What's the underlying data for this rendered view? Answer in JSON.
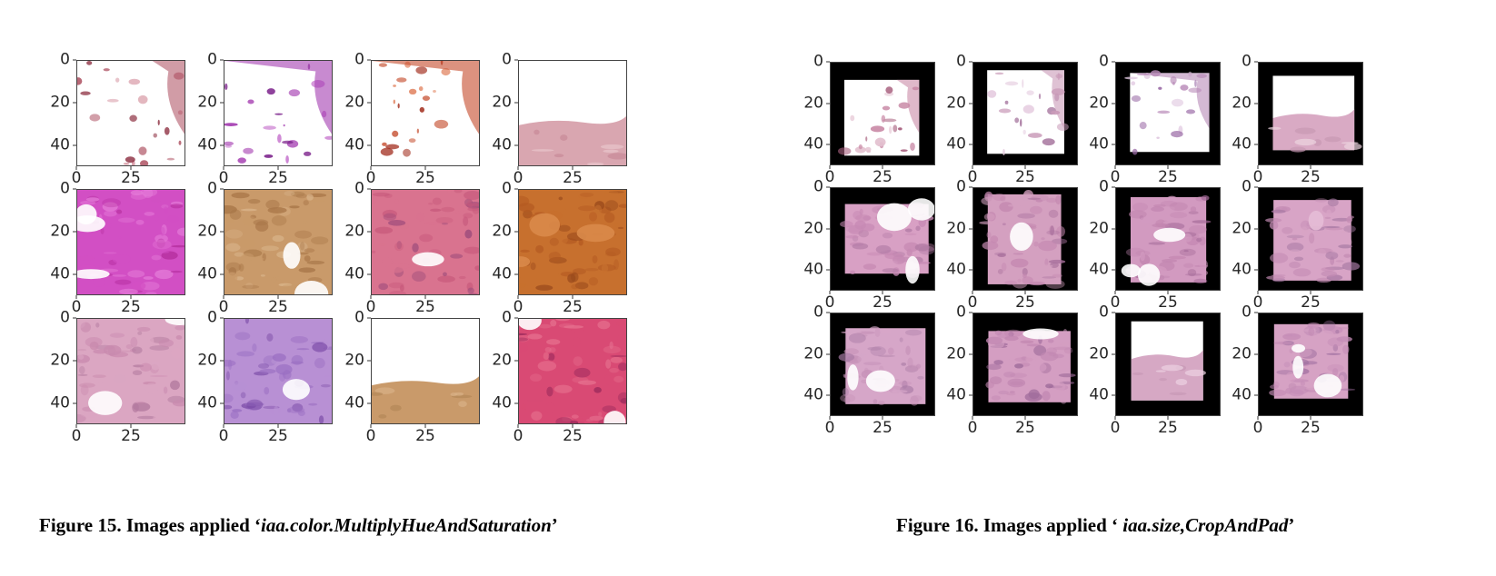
{
  "figures": [
    {
      "id": "figure-15",
      "caption": {
        "prefix": "Figure 15. Images applied ‘",
        "method": "iaa.color.MultiplyHueAndSaturation",
        "suffix": "’"
      },
      "panels_ytick_labels": [
        "0",
        "20",
        "40"
      ],
      "panels_xtick_labels": [
        "0",
        "25"
      ],
      "panels": [
        {
          "style": "sparse-pink",
          "colors": [
            "#ffffff",
            "#b25a6a",
            "#d89aa6",
            "#8a2a3c"
          ]
        },
        {
          "style": "sparse-purple",
          "colors": [
            "#ffffff",
            "#a43cb0",
            "#c97ad0",
            "#7a1f8a"
          ]
        },
        {
          "style": "sparse-red",
          "colors": [
            "#ffffff",
            "#c44a2a",
            "#e38b6a",
            "#a02818"
          ]
        },
        {
          "style": "band-pink",
          "colors": [
            "#ffffff",
            "#d9a6b0",
            "#c88a98",
            "#e8c6cc"
          ]
        },
        {
          "style": "tissue-magenta",
          "colors": [
            "#d24fc4",
            "#e47ad8",
            "#ffffff",
            "#b52e9e"
          ]
        },
        {
          "style": "tissue-tan",
          "colors": [
            "#c99a6a",
            "#a87648",
            "#ffffff",
            "#d9b48a"
          ]
        },
        {
          "style": "tissue-pink",
          "colors": [
            "#d9738f",
            "#c85a7c",
            "#ffffff",
            "#9a4a7a"
          ]
        },
        {
          "style": "tissue-orange",
          "colors": [
            "#c7702e",
            "#b45a22",
            "#d9894a",
            "#9a4a1c"
          ]
        },
        {
          "style": "tissue-lightpink",
          "colors": [
            "#dba6c2",
            "#c98aae",
            "#ffffff",
            "#b27a9e"
          ]
        },
        {
          "style": "tissue-violet",
          "colors": [
            "#b890d4",
            "#9a6ec2",
            "#ffffff",
            "#7a4aa6"
          ]
        },
        {
          "style": "band-tan",
          "colors": [
            "#ffffff",
            "#c99a6a",
            "#b48858",
            "#d8b088"
          ]
        },
        {
          "style": "tissue-rose",
          "colors": [
            "#d94a74",
            "#e6708e",
            "#ffffff",
            "#9a2a5c"
          ]
        }
      ]
    },
    {
      "id": "figure-16",
      "caption": {
        "prefix": "Figure 16. Images applied ‘ ",
        "method": "iaa.size,CropAndPad",
        "suffix": "’"
      },
      "panels_ytick_labels": [
        "0",
        "20",
        "40"
      ],
      "panels_xtick_labels": [
        "0",
        "25"
      ],
      "panels": [
        {
          "style": "pad-sparse",
          "colors": [
            "#ffffff",
            "#c98aa6",
            "#a8607e",
            "#e3c0cf"
          ]
        },
        {
          "style": "pad-sparse",
          "colors": [
            "#ffffff",
            "#c99ab8",
            "#a878a0",
            "#e6cde0"
          ]
        },
        {
          "style": "pad-sparse",
          "colors": [
            "#ffffff",
            "#b88ab8",
            "#9a6aa6",
            "#e0c8e0"
          ]
        },
        {
          "style": "pad-band",
          "colors": [
            "#ffffff",
            "#d9aac4",
            "#c898b4",
            "#ecd4e0"
          ]
        },
        {
          "style": "pad-tissue",
          "colors": [
            "#d8a0c4",
            "#c78ab4",
            "#ffffff",
            "#b07aa4"
          ]
        },
        {
          "style": "pad-tissue",
          "colors": [
            "#d4a0c0",
            "#c488b0",
            "#ffffff",
            "#a8709c"
          ]
        },
        {
          "style": "pad-tissue",
          "colors": [
            "#d29ac0",
            "#c286b0",
            "#ffffff",
            "#a46a98"
          ]
        },
        {
          "style": "pad-tissue",
          "colors": [
            "#d8a4c6",
            "#c48cb4",
            "#e6bcd6",
            "#a87aa4"
          ]
        },
        {
          "style": "pad-tissue",
          "colors": [
            "#d6a6c8",
            "#c692b8",
            "#ffffff",
            "#aa7ca6"
          ]
        },
        {
          "style": "pad-tissue",
          "colors": [
            "#d49ec2",
            "#c288b2",
            "#ffffff",
            "#9e6a9a"
          ]
        },
        {
          "style": "pad-band",
          "colors": [
            "#ffffff",
            "#d6a8c4",
            "#c898b6",
            "#ecd2e2"
          ]
        },
        {
          "style": "pad-tissue",
          "colors": [
            "#d6a2c4",
            "#c48cb6",
            "#ffffff",
            "#a272a2"
          ]
        }
      ]
    }
  ]
}
